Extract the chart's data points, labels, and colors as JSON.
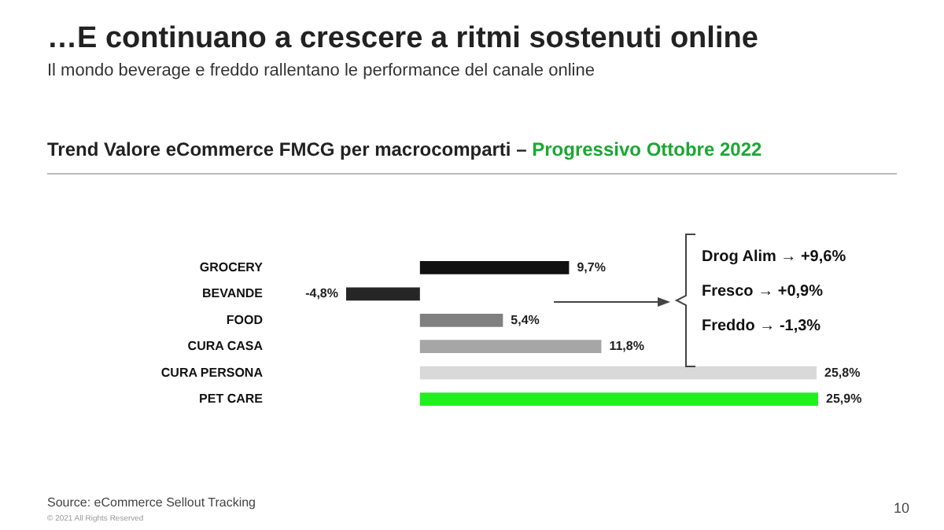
{
  "chart_data": {
    "type": "bar",
    "orientation": "horizontal",
    "title": "…E continuano a crescere a ritmi sostenuti online",
    "subtitle": "Il mondo beverage e freddo rallentano le performance del canale online",
    "categories": [
      "GROCERY",
      "BEVANDE",
      "FOOD",
      "CURA CASA",
      "CURA PERSONA",
      "PET CARE"
    ],
    "values": [
      9.7,
      -4.8,
      5.4,
      11.8,
      25.8,
      25.9
    ],
    "value_labels": [
      "9,7%",
      "-4,8%",
      "5,4%",
      "11,8%",
      "25,8%",
      "25,9%"
    ],
    "colors": [
      "#111111",
      "#262626",
      "#808080",
      "#a6a6a6",
      "#d9d9d9",
      "#22ee22"
    ],
    "annotations": [
      "Trend Valore eCommerce FMCG per macrocomparti –",
      "Progressivo Ottobre 2022",
      "Drog Alim → +9,6%",
      "Fresco → +0,9%",
      "Freddo → -1,3%",
      "Source: eCommerce Sellout Tracking",
      "© 2021 All Rights Reserved",
      "10"
    ]
  }
}
